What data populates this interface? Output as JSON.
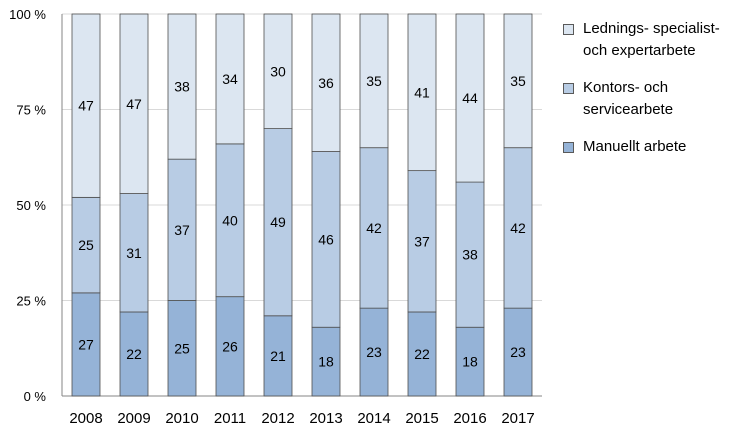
{
  "chart_data": {
    "type": "bar",
    "stacked": "percent",
    "categories": [
      "2008",
      "2009",
      "2010",
      "2011",
      "2012",
      "2013",
      "2014",
      "2015",
      "2016",
      "2017"
    ],
    "series": [
      {
        "name": "Manuellt arbete",
        "color": "#95b3d7",
        "values": [
          27,
          22,
          25,
          26,
          21,
          18,
          23,
          22,
          18,
          23
        ]
      },
      {
        "name": "Kontors- och servicearbete",
        "color": "#b8cce4",
        "values": [
          25,
          31,
          37,
          40,
          49,
          46,
          42,
          37,
          38,
          42
        ]
      },
      {
        "name": "Lednings- specialist- och expertarbete",
        "color": "#dce6f1",
        "values": [
          47,
          47,
          38,
          34,
          30,
          36,
          35,
          41,
          44,
          35
        ]
      }
    ],
    "ylim": [
      0,
      100
    ],
    "yticks": [
      "0 %",
      "25 %",
      "50 %",
      "75 %",
      "100 %"
    ],
    "grid": true,
    "legend_position": "right",
    "title": "",
    "xlabel": "",
    "ylabel": ""
  },
  "legend": {
    "items": [
      {
        "label": "Lednings- specialist- och expertarbete",
        "color": "#dce6f1"
      },
      {
        "label": "Kontors- och servicearbete",
        "color": "#b8cce4"
      },
      {
        "label": "Manuellt arbete",
        "color": "#95b3d7"
      }
    ]
  }
}
